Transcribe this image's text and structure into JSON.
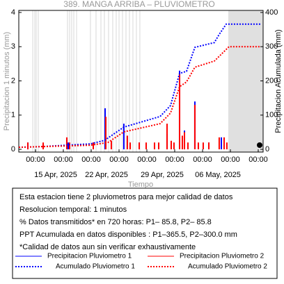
{
  "chart_data": {
    "type": "line",
    "title": "389. MANGA ARRIBA – PLUVIOMETRO",
    "y_label": "Precipitacion 1 minutos (mm)",
    "y2_label": "Precipitacion Acumulada (mm)",
    "x_label": "Tiempo",
    "xlim": [
      0,
      31
    ],
    "xticks": [
      {
        "value": 2.12,
        "label": "00:00"
      },
      {
        "value": 5.65,
        "label": "00:00"
      },
      {
        "value": 9.19,
        "label": "00:00"
      },
      {
        "value": 12.72,
        "label": "00:00"
      },
      {
        "value": 16.25,
        "label": "00:00"
      },
      {
        "value": 19.78,
        "label": "00:00"
      },
      {
        "value": 23.32,
        "label": "00:00"
      },
      {
        "value": 26.85,
        "label": "00:00"
      },
      {
        "value": 30.38,
        "label": "00:00"
      }
    ],
    "xdates": [
      {
        "value": 4.68,
        "label": "15 Apr, 2025"
      },
      {
        "value": 11.13,
        "label": "22 Apr, 2025"
      },
      {
        "value": 18.19,
        "label": "29 Apr, 2025"
      },
      {
        "value": 25.26,
        "label": "06 May, 2025"
      }
    ],
    "ylim": [
      -0.08,
      4.06
    ],
    "yticks": [
      0,
      1,
      2,
      3,
      4
    ],
    "y2lim": [
      -8,
      406
    ],
    "y2ticks": [
      0,
      100,
      200,
      300,
      400
    ],
    "gaps": [
      1.77,
      2.03,
      2.21,
      2.47,
      6.18,
      6.45,
      6.71,
      6.98,
      7.33,
      9.09,
      9.8,
      10.42,
      10.86,
      11.39,
      11.92,
      12.36,
      12.72,
      13.16,
      13.6,
      14.04,
      14.48,
      14.92,
      15.36
    ],
    "shaded": [
      26.58,
      31
    ],
    "series": [
      {
        "name": "Precipitacion Pluviometro 1",
        "color": "#0000ff",
        "axis": "y",
        "style": "spike",
        "x": [
          1.15,
          6.27,
          9.45,
          10.95,
          13.33,
          15.28,
          18.81,
          20.4,
          21.02,
          22.34,
          24.11,
          25.7
        ],
        "values": [
          0.2,
          0.2,
          0.2,
          1.2,
          0.75,
          0.2,
          0.45,
          2.3,
          0.55,
          1.4,
          0.2,
          0.35
        ]
      },
      {
        "name": "Precipitacion Pluviometro 2",
        "color": "#ff0000",
        "axis": "y",
        "style": "spike",
        "x": [
          1.15,
          3.09,
          6.09,
          6.45,
          9.45,
          11.04,
          11.74,
          13.77,
          14.13,
          15.28,
          16.16,
          17.22,
          17.75,
          18.81,
          19.34,
          19.69,
          20.4,
          20.75,
          21.02,
          21.46,
          22.34,
          22.78,
          23.4,
          24.11,
          25.43,
          26.05,
          26.4
        ],
        "values": [
          0.2,
          0.2,
          0.35,
          0.2,
          0.2,
          0.95,
          0.25,
          0.4,
          0.2,
          0.2,
          0.2,
          0.2,
          0.2,
          0.75,
          0.25,
          0.2,
          2.2,
          0.4,
          0.5,
          0.2,
          1.3,
          0.2,
          0.2,
          0.2,
          0.35,
          0.35,
          0.2
        ]
      },
      {
        "name": "Acumulado Pluviometro 1",
        "color": "#0000ff",
        "axis": "y2",
        "style": "dotted",
        "x": [
          0,
          2.91,
          9.09,
          10.86,
          13.33,
          17.93,
          19.25,
          20.4,
          21.28,
          22.34,
          24.81,
          25.43,
          26.32,
          30.73
        ],
        "values": [
          6,
          8,
          16,
          26,
          65,
          96,
          128,
          222,
          228,
          298,
          312,
          336,
          366,
          366
        ]
      },
      {
        "name": "Acumulado Pluviometro 2",
        "color": "#ff0000",
        "axis": "y2",
        "style": "dotted",
        "x": [
          0,
          9.09,
          11.3,
          13.33,
          17.93,
          19.25,
          20.4,
          21.28,
          22.34,
          24.81,
          25.79,
          26.67,
          30.73
        ],
        "values": [
          6,
          12,
          20,
          51,
          75,
          106,
          183,
          197,
          240,
          258,
          280,
          300,
          300
        ]
      }
    ],
    "notes": [
      "Esta estacion tiene 2 pluviometros para mejor calidad de datos",
      "Resolucion temporal: 1 minutos",
      "% Datos transmitidos* en 720 horas: P1– 85.8, P2– 85.8",
      "PPT Acumulada en datos disponibles : P1–365.5, P2–300.0 mm",
      "*Calidad de datos aun sin verificar exhaustivamente"
    ]
  }
}
